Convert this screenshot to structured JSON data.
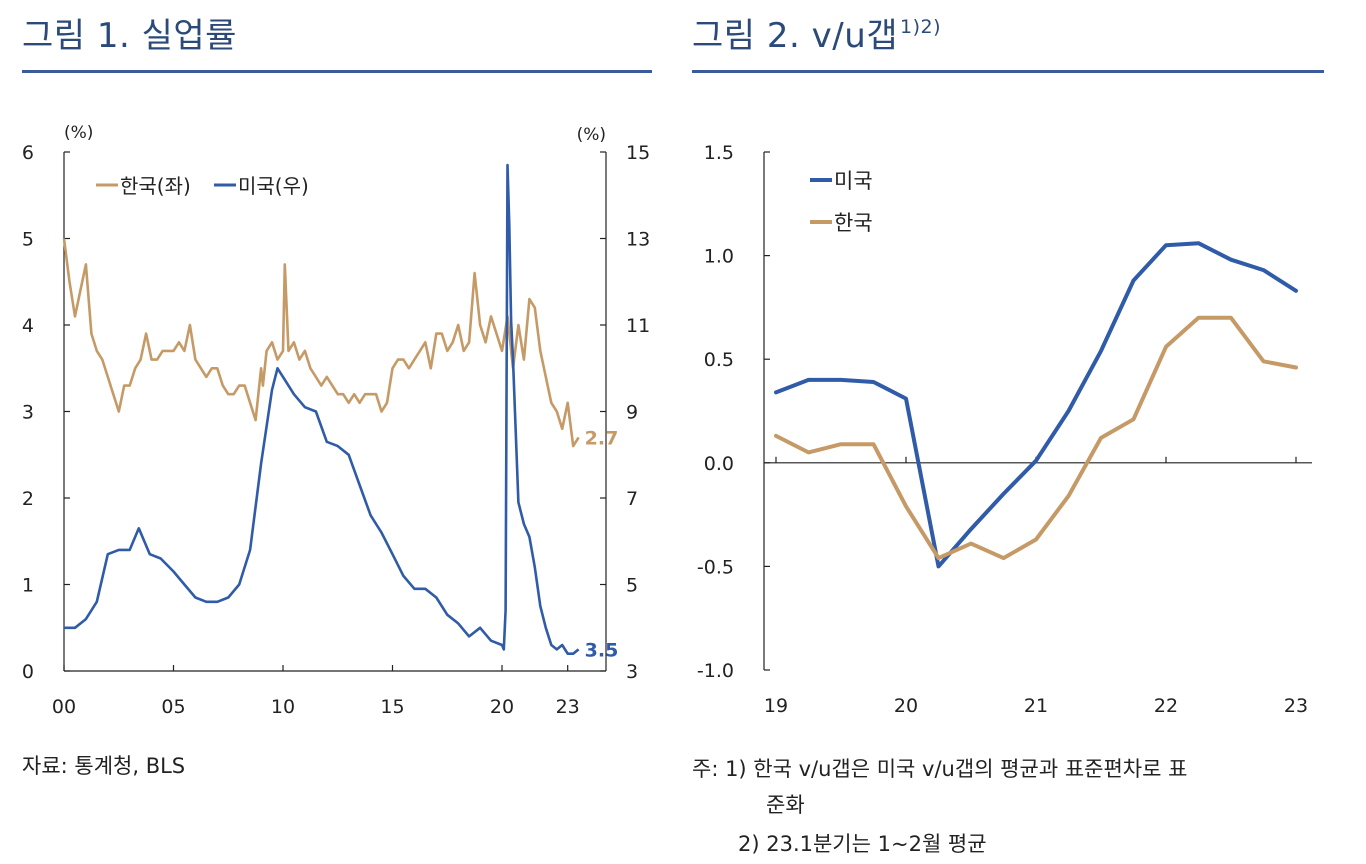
{
  "figure1": {
    "title": "그림 1. 실업률",
    "source": "자료: 통계청, BLS",
    "chart_data": {
      "type": "line",
      "left_unit": "(%)",
      "right_unit": "(%)",
      "left_ylim": [
        0,
        6
      ],
      "right_ylim": [
        3,
        15
      ],
      "left_ticks": [
        "0",
        "1",
        "2",
        "3",
        "4",
        "5",
        "6"
      ],
      "right_ticks": [
        "3",
        "5",
        "7",
        "9",
        "11",
        "13",
        "15"
      ],
      "x_ticks": [
        "00",
        "05",
        "10",
        "15",
        "20",
        "23"
      ],
      "legend_position": "top-left",
      "series": [
        {
          "name": "한국(좌)",
          "axis": "left",
          "color": "#c69a66",
          "end_label": "2.7",
          "x": [
            "2000-01",
            "2000-04",
            "2000-07",
            "2000-10",
            "2001-01",
            "2001-04",
            "2001-07",
            "2001-10",
            "2002-01",
            "2002-04",
            "2002-07",
            "2002-10",
            "2003-01",
            "2003-04",
            "2003-07",
            "2003-10",
            "2004-01",
            "2004-04",
            "2004-07",
            "2004-10",
            "2005-01",
            "2005-04",
            "2005-07",
            "2005-10",
            "2006-01",
            "2006-04",
            "2006-07",
            "2006-10",
            "2007-01",
            "2007-04",
            "2007-07",
            "2007-10",
            "2008-01",
            "2008-04",
            "2008-07",
            "2008-10",
            "2009-01",
            "2009-02",
            "2009-04",
            "2009-07",
            "2009-10",
            "2010-01",
            "2010-02",
            "2010-04",
            "2010-07",
            "2010-10",
            "2011-01",
            "2011-04",
            "2011-07",
            "2011-10",
            "2012-01",
            "2012-04",
            "2012-07",
            "2012-10",
            "2013-01",
            "2013-04",
            "2013-07",
            "2013-10",
            "2014-01",
            "2014-04",
            "2014-07",
            "2014-10",
            "2015-01",
            "2015-04",
            "2015-07",
            "2015-10",
            "2016-01",
            "2016-04",
            "2016-07",
            "2016-10",
            "2017-01",
            "2017-04",
            "2017-07",
            "2017-10",
            "2018-01",
            "2018-04",
            "2018-07",
            "2018-10",
            "2019-01",
            "2019-04",
            "2019-07",
            "2019-10",
            "2020-01",
            "2020-04",
            "2020-07",
            "2020-10",
            "2021-01",
            "2021-04",
            "2021-07",
            "2021-10",
            "2022-01",
            "2022-04",
            "2022-07",
            "2022-10",
            "2023-01",
            "2023-04",
            "2023-07"
          ],
          "values": [
            5.0,
            4.5,
            4.1,
            4.4,
            4.7,
            3.9,
            3.7,
            3.6,
            3.4,
            3.2,
            3.0,
            3.3,
            3.3,
            3.5,
            3.6,
            3.9,
            3.6,
            3.6,
            3.7,
            3.7,
            3.7,
            3.8,
            3.7,
            4.0,
            3.6,
            3.5,
            3.4,
            3.5,
            3.5,
            3.3,
            3.2,
            3.2,
            3.3,
            3.3,
            3.1,
            2.9,
            3.5,
            3.3,
            3.7,
            3.8,
            3.6,
            3.7,
            4.7,
            3.7,
            3.8,
            3.6,
            3.7,
            3.5,
            3.4,
            3.3,
            3.4,
            3.3,
            3.2,
            3.2,
            3.1,
            3.2,
            3.1,
            3.2,
            3.2,
            3.2,
            3.0,
            3.1,
            3.5,
            3.6,
            3.6,
            3.5,
            3.6,
            3.7,
            3.8,
            3.5,
            3.9,
            3.9,
            3.7,
            3.8,
            4.0,
            3.7,
            3.8,
            4.6,
            4.0,
            3.8,
            4.1,
            3.9,
            3.7,
            4.1,
            3.5,
            4.0,
            3.6,
            4.3,
            4.2,
            3.7,
            3.4,
            3.1,
            3.0,
            2.8,
            3.1,
            2.6,
            2.7
          ]
        },
        {
          "name": "미국(우)",
          "axis": "right",
          "color": "#2f5ba8",
          "end_label": "3.5",
          "x": [
            "2000-01",
            "2000-07",
            "2001-01",
            "2001-07",
            "2002-01",
            "2002-07",
            "2003-01",
            "2003-06",
            "2003-12",
            "2004-06",
            "2005-01",
            "2005-07",
            "2006-01",
            "2006-07",
            "2007-01",
            "2007-07",
            "2008-01",
            "2008-07",
            "2009-01",
            "2009-07",
            "2009-10",
            "2010-01",
            "2010-07",
            "2011-01",
            "2011-07",
            "2012-01",
            "2012-07",
            "2013-01",
            "2013-07",
            "2014-01",
            "2014-07",
            "2015-01",
            "2015-07",
            "2016-01",
            "2016-07",
            "2017-01",
            "2017-07",
            "2018-01",
            "2018-07",
            "2019-01",
            "2019-07",
            "2020-01",
            "2020-02",
            "2020-03",
            "2020-04",
            "2020-05",
            "2020-06",
            "2020-07",
            "2020-10",
            "2021-01",
            "2021-04",
            "2021-07",
            "2021-10",
            "2022-01",
            "2022-04",
            "2022-07",
            "2022-10",
            "2023-01",
            "2023-04",
            "2023-07"
          ],
          "values": [
            4.0,
            4.0,
            4.2,
            4.6,
            5.7,
            5.8,
            5.8,
            6.3,
            5.7,
            5.6,
            5.3,
            5.0,
            4.7,
            4.6,
            4.6,
            4.7,
            5.0,
            5.8,
            7.8,
            9.5,
            10.0,
            9.8,
            9.4,
            9.1,
            9.0,
            8.3,
            8.2,
            8.0,
            7.3,
            6.6,
            6.2,
            5.7,
            5.2,
            4.9,
            4.9,
            4.7,
            4.3,
            4.1,
            3.8,
            4.0,
            3.7,
            3.6,
            3.5,
            4.4,
            14.7,
            13.3,
            11.1,
            10.2,
            6.9,
            6.4,
            6.1,
            5.4,
            4.5,
            4.0,
            3.6,
            3.5,
            3.6,
            3.4,
            3.4,
            3.5
          ]
        }
      ]
    }
  },
  "figure2": {
    "title": "그림 2. v/u갭",
    "title_sup": "1)2)",
    "notes": [
      "주:  1) 한국 v/u갭은 미국 v/u갭의 평균과 표준편차로 표",
      "준화",
      "2) 23.1분기는 1~2월 평균"
    ],
    "chart_data": {
      "type": "line",
      "ylim": [
        -1.0,
        1.5
      ],
      "y_ticks": [
        "1.5",
        "1.0",
        "0.5",
        "0.0",
        "-0.5",
        "-1.0"
      ],
      "x_ticks": [
        "19",
        "20",
        "21",
        "22",
        "23"
      ],
      "legend_position": "top-left",
      "series": [
        {
          "name": "미국",
          "color": "#2f5ba8",
          "x": [
            "2019Q1",
            "2019Q2",
            "2019Q3",
            "2019Q4",
            "2020Q1",
            "2020Q2",
            "2020Q3",
            "2020Q4",
            "2021Q1",
            "2021Q2",
            "2021Q3",
            "2021Q4",
            "2022Q1",
            "2022Q2",
            "2022Q3",
            "2022Q4",
            "2023Q1"
          ],
          "values": [
            0.34,
            0.4,
            0.4,
            0.39,
            0.31,
            -0.5,
            -0.32,
            -0.15,
            0.01,
            0.25,
            0.54,
            0.88,
            1.05,
            1.06,
            0.98,
            0.93,
            0.83
          ]
        },
        {
          "name": "한국",
          "color": "#c69a66",
          "x": [
            "2019Q1",
            "2019Q2",
            "2019Q3",
            "2019Q4",
            "2020Q1",
            "2020Q2",
            "2020Q3",
            "2020Q4",
            "2021Q1",
            "2021Q2",
            "2021Q3",
            "2021Q4",
            "2022Q1",
            "2022Q2",
            "2022Q3",
            "2022Q4",
            "2023Q1"
          ],
          "values": [
            0.13,
            0.05,
            0.09,
            0.09,
            -0.21,
            -0.46,
            -0.39,
            -0.46,
            -0.37,
            -0.16,
            0.12,
            0.21,
            0.56,
            0.7,
            0.7,
            0.49,
            0.46
          ]
        }
      ]
    }
  }
}
